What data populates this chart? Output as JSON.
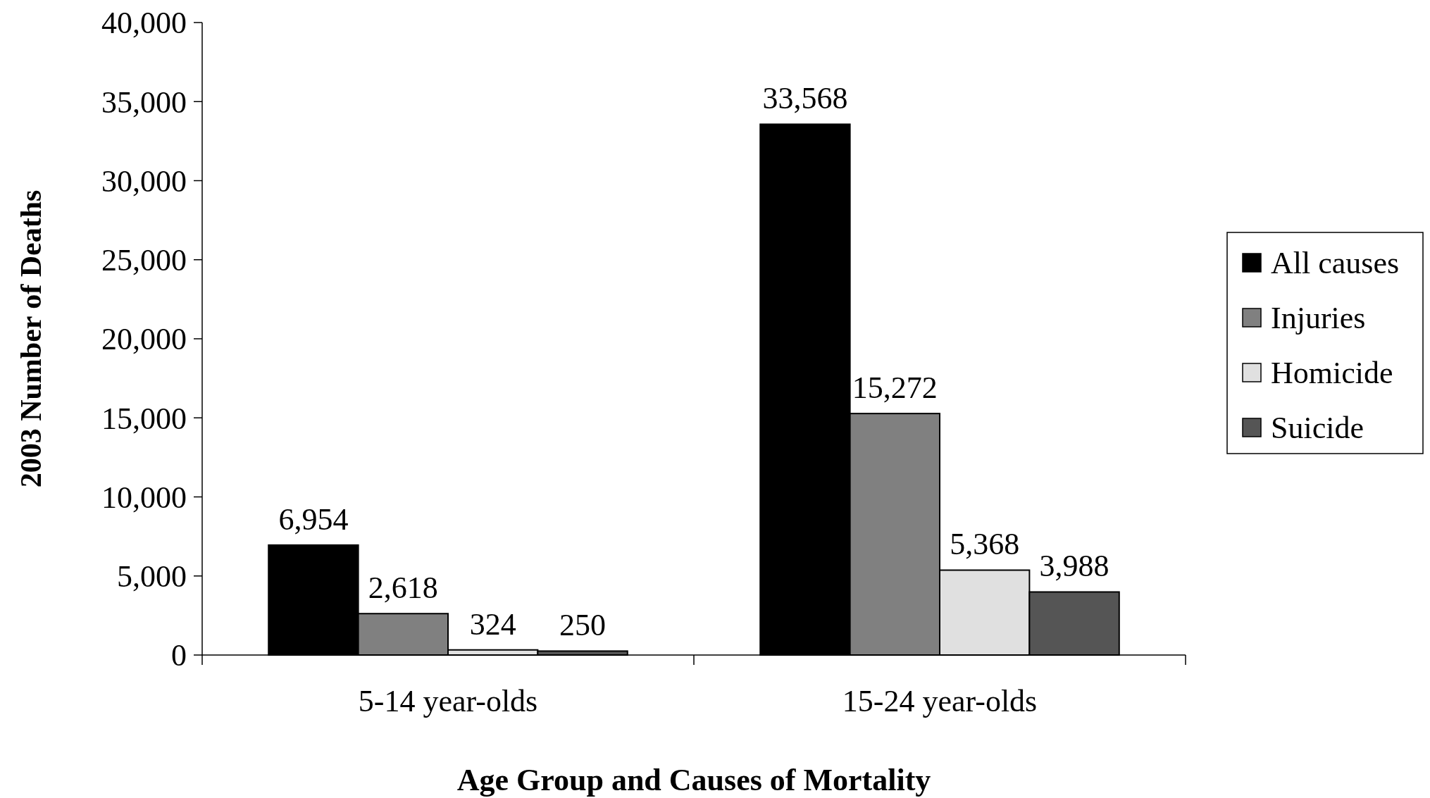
{
  "chart_data": {
    "type": "bar",
    "xlabel": "Age Group and Causes of Mortality",
    "ylabel": "2003 Number of Deaths",
    "categories": [
      "5-14 year-olds",
      "15-24 year-olds"
    ],
    "series": [
      {
        "name": "All causes",
        "color": "#000000",
        "values": [
          6954,
          33568
        ],
        "value_labels": [
          "6,954",
          "33,568"
        ]
      },
      {
        "name": "Injuries",
        "color": "#808080",
        "values": [
          2618,
          15272
        ],
        "value_labels": [
          "2,618",
          "15,272"
        ]
      },
      {
        "name": "Homicide",
        "color": "#e0e0e0",
        "values": [
          324,
          5368
        ],
        "value_labels": [
          "324",
          "5,368"
        ]
      },
      {
        "name": "Suicide",
        "color": "#555555",
        "values": [
          250,
          3988
        ],
        "value_labels": [
          "250",
          "3,988"
        ]
      }
    ],
    "ylim": [
      0,
      40000
    ],
    "yticks": [
      {
        "value": 0,
        "label": "0"
      },
      {
        "value": 5000,
        "label": "5,000"
      },
      {
        "value": 10000,
        "label": "10,000"
      },
      {
        "value": 15000,
        "label": "15,000"
      },
      {
        "value": 20000,
        "label": "20,000"
      },
      {
        "value": 25000,
        "label": "25,000"
      },
      {
        "value": 30000,
        "label": "30,000"
      },
      {
        "value": 35000,
        "label": "35,000"
      },
      {
        "value": 40000,
        "label": "40,000"
      }
    ],
    "legend": "right",
    "grid": false
  }
}
